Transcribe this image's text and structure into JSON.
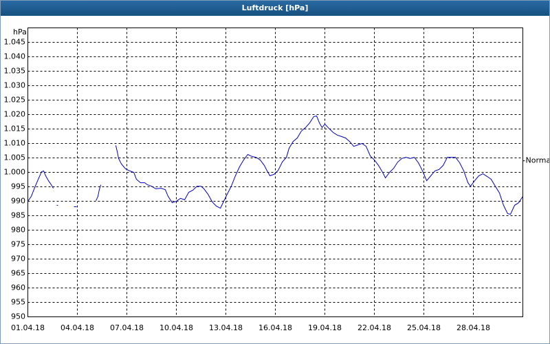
{
  "chart_data": {
    "type": "line",
    "title": "Luftdruck [hPa]",
    "y_label": "hPa",
    "annotation": {
      "text": "Normal",
      "value": 1004
    },
    "xlim": [
      0,
      30
    ],
    "ylim": [
      950,
      1050
    ],
    "xticks": [
      {
        "value": 0,
        "label": "01.04.18"
      },
      {
        "value": 3,
        "label": "04.04.18"
      },
      {
        "value": 6,
        "label": "07.04.18"
      },
      {
        "value": 9,
        "label": "10.04.18"
      },
      {
        "value": 12,
        "label": "13.04.18"
      },
      {
        "value": 15,
        "label": "16.04.18"
      },
      {
        "value": 18,
        "label": "19.04.18"
      },
      {
        "value": 21,
        "label": "22.04.18"
      },
      {
        "value": 24,
        "label": "25.04.18"
      },
      {
        "value": 27,
        "label": "28.04.18"
      }
    ],
    "yticks": [
      950,
      955,
      960,
      965,
      970,
      975,
      980,
      985,
      990,
      995,
      {
        "value": 1000,
        "label": "1.000"
      },
      {
        "value": 1005,
        "label": "1.005"
      },
      {
        "value": 1010,
        "label": "1.010"
      },
      {
        "value": 1015,
        "label": "1.015"
      },
      {
        "value": 1020,
        "label": "1.020"
      },
      {
        "value": 1025,
        "label": "1.025"
      },
      {
        "value": 1030,
        "label": "1.030"
      },
      {
        "value": 1035,
        "label": "1.035"
      },
      {
        "value": 1040,
        "label": "1.040"
      },
      {
        "value": 1045,
        "label": "1.045"
      }
    ],
    "grid": true,
    "series": [
      {
        "color": "#0000c0",
        "x": [
          0,
          0.21,
          0.42,
          0.63,
          0.83,
          0.96,
          1.08,
          1.25,
          1.42,
          1.54,
          1.65,
          1.75,
          1.83,
          2.3,
          2.79,
          2.96,
          3.5,
          4.13,
          4.25,
          4.33,
          4.42,
          4.9,
          5.33,
          5.42,
          5.5,
          5.67,
          5.92,
          6.17,
          6.42,
          6.58,
          6.83,
          7.08,
          7.25,
          7.5,
          7.75,
          8.08,
          8.33,
          8.5,
          8.75,
          9,
          9.25,
          9.5,
          9.75,
          10,
          10.25,
          10.5,
          10.67,
          10.92,
          11.17,
          11.42,
          11.67,
          11.83,
          12.08,
          12.33,
          12.58,
          12.83,
          13.08,
          13.33,
          13.58,
          13.83,
          14.08,
          14.33,
          14.5,
          14.67,
          14.92,
          15.17,
          15.42,
          15.67,
          15.83,
          16.08,
          16.33,
          16.58,
          16.83,
          17.08,
          17.33,
          17.5,
          17.67,
          17.83,
          18,
          18.25,
          18.5,
          18.75,
          19,
          19.25,
          19.5,
          19.75,
          20,
          20.25,
          20.5,
          20.75,
          21,
          21.25,
          21.5,
          21.67,
          21.92,
          22.17,
          22.42,
          22.67,
          22.92,
          23.17,
          23.42,
          23.67,
          23.92,
          24.17,
          24.42,
          24.67,
          24.92,
          25.17,
          25.42,
          25.67,
          25.92,
          26.17,
          26.42,
          26.67,
          26.83,
          27.08,
          27.33,
          27.58,
          27.83,
          28.08,
          28.33,
          28.58,
          28.83,
          29.08,
          29.25,
          29.5,
          29.75,
          30
        ],
        "values": [
          990,
          991.7,
          994.8,
          997.6,
          1000.2,
          1000.5,
          998.8,
          997.1,
          995.7,
          994.5,
          null,
          988.6,
          988.6,
          null,
          988.1,
          988.1,
          null,
          990.2,
          991.7,
          994,
          995.7,
          null,
          1009.3,
          1007.1,
          1004.8,
          1002.9,
          1001.2,
          1000.5,
          1000,
          997.6,
          996.4,
          996.4,
          995.7,
          995.2,
          994.3,
          994.5,
          994,
          991.7,
          989.5,
          990,
          991,
          990.5,
          993.1,
          993.8,
          995.2,
          995.2,
          994.3,
          992.4,
          989.8,
          988.3,
          987.6,
          989.5,
          992.4,
          995.2,
          998.8,
          1001.9,
          1004.3,
          1006.2,
          1005.5,
          1005.2,
          1004.3,
          1002.4,
          1000.5,
          998.8,
          999.3,
          1000.7,
          1003.6,
          1005.2,
          1008.3,
          1010.7,
          1011.9,
          1014.3,
          1015.5,
          1017.1,
          1019.3,
          1019.5,
          1017.1,
          1015.5,
          1016.7,
          1015.2,
          1013.8,
          1012.9,
          1012.4,
          1011.9,
          1010.7,
          1009,
          1009.5,
          1010,
          1009,
          1005.7,
          1004.3,
          1002.4,
          1000,
          998.1,
          1000,
          1001.4,
          1003.6,
          1004.8,
          1005.2,
          1004.8,
          1005.2,
          1003.3,
          1000.5,
          997.1,
          998.8,
          1000.5,
          1001,
          1002.4,
          1005.2,
          1005.2,
          1005.2,
          1003.3,
          1000.5,
          996.4,
          995.2,
          997.1,
          998.8,
          999.5,
          998.6,
          997.6,
          995.2,
          992.9,
          988.6,
          985.7,
          985.5,
          988.6,
          989.5,
          991.7
        ]
      }
    ]
  }
}
